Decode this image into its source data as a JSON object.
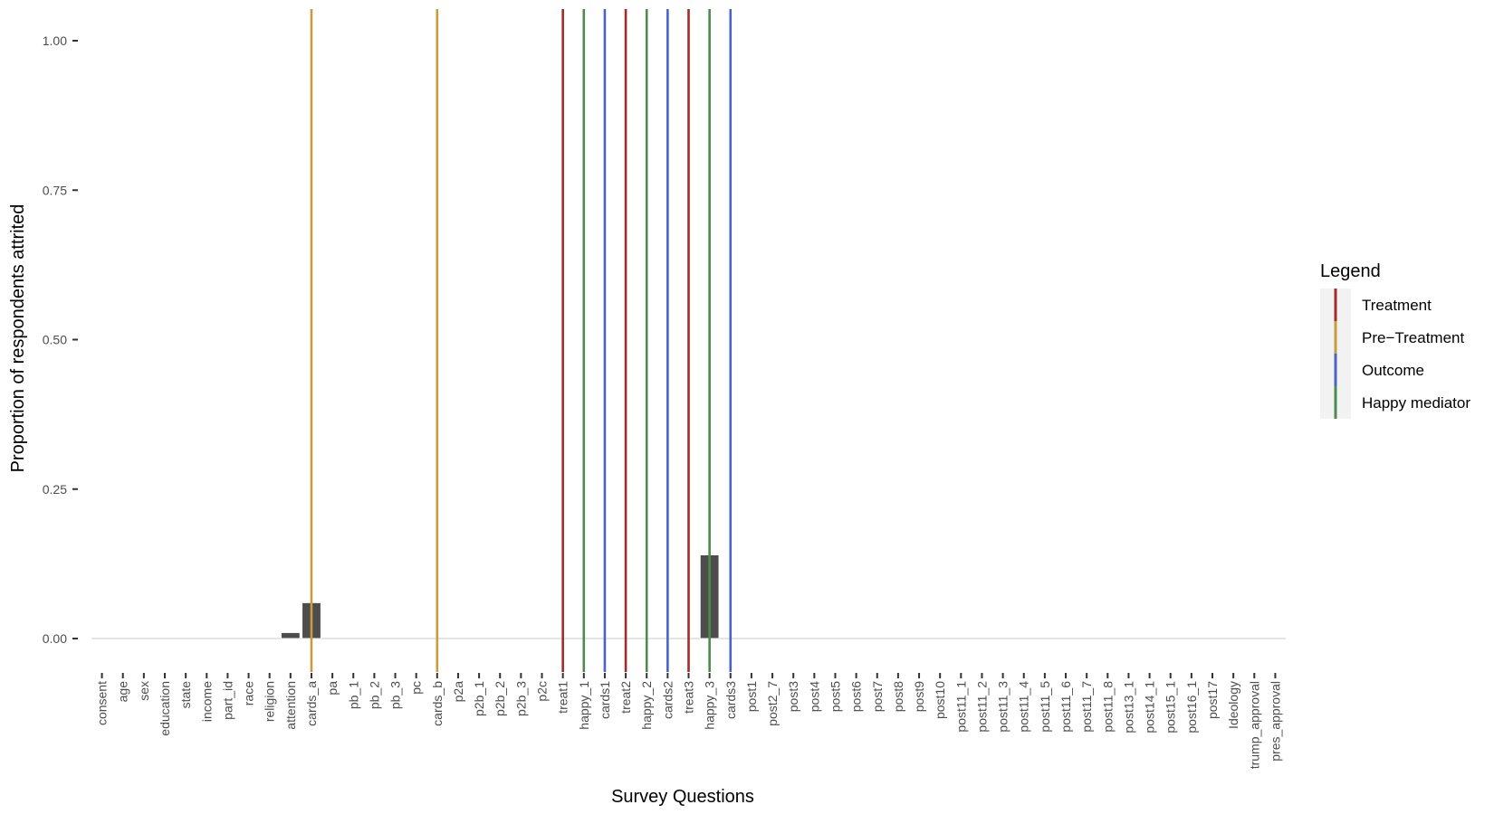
{
  "chart_data": {
    "type": "bar",
    "title": "",
    "xlabel": "Survey Questions",
    "ylabel": "Proportion of respondents attrited",
    "ylim": [
      0,
      1.05
    ],
    "yticks": [
      0.0,
      0.25,
      0.5,
      0.75,
      1.0
    ],
    "ytick_labels": [
      "0.00",
      "0.25",
      "0.50",
      "0.75",
      "1.00"
    ],
    "grid": false,
    "legend_position": "right",
    "categories": [
      "consent",
      "age",
      "sex",
      "education",
      "state",
      "income",
      "part_id",
      "race",
      "religion",
      "attention",
      "cards_a",
      "pa",
      "pb_1",
      "pb_2",
      "pb_3",
      "pc",
      "cards_b",
      "p2a",
      "p2b_1",
      "p2b_2",
      "p2b_3",
      "p2c",
      "treat1",
      "happy_1",
      "cards1",
      "treat2",
      "happy_2",
      "cards2",
      "treat3",
      "happy_3",
      "cards3",
      "post1",
      "post2_7",
      "post3",
      "post4",
      "post5",
      "post6",
      "post7",
      "post8",
      "post9",
      "post10",
      "post11_1",
      "post11_2",
      "post11_3",
      "post11_4",
      "post11_5",
      "post11_6",
      "post11_7",
      "post11_8",
      "post13_1",
      "post14_1",
      "post15_1",
      "post16_1",
      "post17",
      "Ideology",
      "trump_approval",
      "pres_approval"
    ],
    "values": [
      0,
      0,
      0,
      0,
      0,
      0,
      0,
      0,
      0,
      0.01,
      0.06,
      0,
      0,
      0,
      0,
      0,
      0,
      0,
      0,
      0,
      0,
      0,
      0,
      0,
      0,
      0,
      0,
      0,
      0,
      0.14,
      0,
      0,
      0,
      0,
      0,
      0,
      0,
      0,
      0,
      0,
      0,
      0,
      0,
      0,
      0,
      0,
      0,
      0,
      0,
      0,
      0,
      0,
      0,
      0,
      0,
      0,
      0
    ],
    "bar_color": "#4d4d4d",
    "vlines": [
      {
        "category": "cards_a",
        "group": "Pre−Treatment"
      },
      {
        "category": "cards_b",
        "group": "Pre−Treatment"
      },
      {
        "category": "treat1",
        "group": "Treatment"
      },
      {
        "category": "happy_1",
        "group": "Happy mediator"
      },
      {
        "category": "cards1",
        "group": "Outcome"
      },
      {
        "category": "treat2",
        "group": "Treatment"
      },
      {
        "category": "happy_2",
        "group": "Happy mediator"
      },
      {
        "category": "cards2",
        "group": "Outcome"
      },
      {
        "category": "treat3",
        "group": "Treatment"
      },
      {
        "category": "happy_3",
        "group": "Happy mediator"
      },
      {
        "category": "cards3",
        "group": "Outcome"
      }
    ],
    "legend": {
      "title": "Legend",
      "entries": [
        {
          "label": "Treatment",
          "color": "#a52a2a"
        },
        {
          "label": "Pre−Treatment",
          "color": "#c89b3c"
        },
        {
          "label": "Outcome",
          "color": "#4a63c9"
        },
        {
          "label": "Happy mediator",
          "color": "#4e8a4e"
        }
      ]
    }
  }
}
